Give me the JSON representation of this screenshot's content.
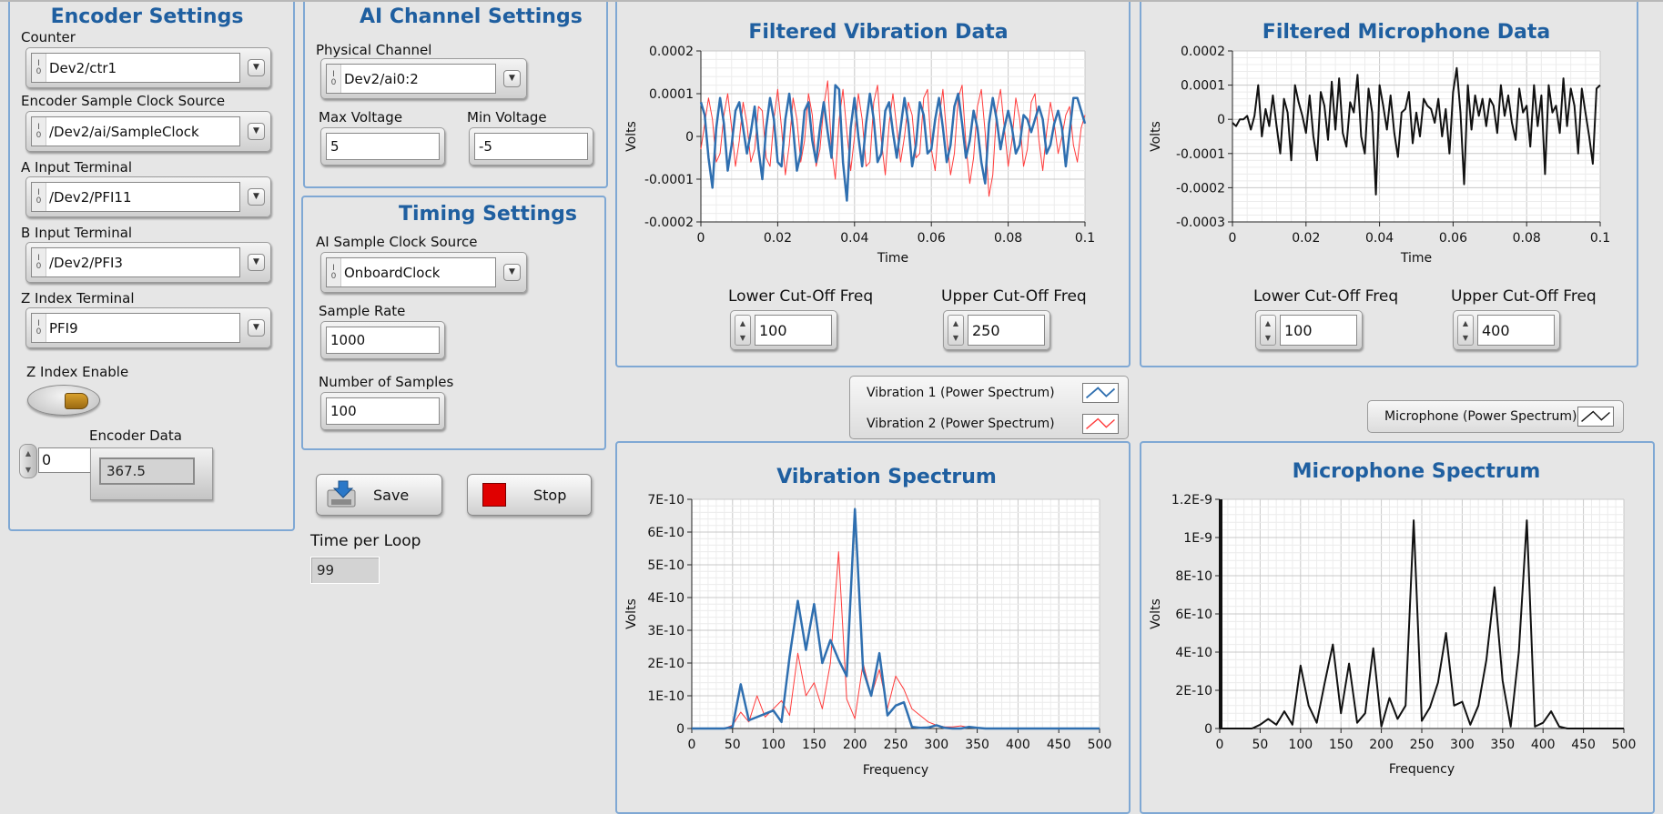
{
  "encoder": {
    "title": "Encoder Settings",
    "counter_label": "Counter",
    "counter_value": "Dev2/ctr1",
    "clock_label": "Encoder Sample Clock Source",
    "clock_value": "/Dev2/ai/SampleClock",
    "a_label": "A Input Terminal",
    "a_value": "/Dev2/PFI11",
    "b_label": "B Input Terminal",
    "b_value": "/Dev2/PFI3",
    "z_label": "Z Index Terminal",
    "z_value": "PFI9",
    "z_enable_label": "Z Index Enable",
    "stepper_value": "0",
    "data_label": "Encoder Data",
    "data_value": "367.5"
  },
  "ai": {
    "title": "AI Channel Settings",
    "phys_label": "Physical Channel",
    "phys_value": "Dev2/ai0:2",
    "max_label": "Max Voltage",
    "max_value": "5",
    "min_label": "Min Voltage",
    "min_value": "-5"
  },
  "timing": {
    "title": "Timing Settings",
    "clock_label": "AI Sample Clock Source",
    "clock_value": "OnboardClock",
    "rate_label": "Sample Rate",
    "rate_value": "1000",
    "nsamp_label": "Number of Samples",
    "nsamp_value": "100"
  },
  "controls": {
    "save_label": "Save",
    "stop_label": "Stop",
    "stop_color": "#e00000",
    "loop_label": "Time per Loop",
    "loop_value": "99"
  },
  "vib_filter": {
    "lower_label": "Lower Cut-Off Freq",
    "lower_value": "100",
    "upper_label": "Upper Cut-Off Freq",
    "upper_value": "250"
  },
  "mic_filter": {
    "lower_label": "Lower Cut-Off Freq",
    "lower_value": "100",
    "upper_label": "Upper Cut-Off Freq",
    "upper_value": "400"
  },
  "legend": {
    "vib1": "Vibration 1 (Power Spectrum)",
    "vib2": "Vibration 2 (Power Spectrum)",
    "mic": "Microphone (Power Spectrum)"
  },
  "colors": {
    "accent": "#1f5fa0",
    "series_blue": "#2f6fb0",
    "series_red": "#ff3b3b",
    "series_black": "#111111"
  },
  "chart_data": [
    {
      "type": "line",
      "title": "Filtered Vibration  Data",
      "xlabel": "Time",
      "ylabel": "Volts",
      "xlim": [
        0,
        0.1
      ],
      "ylim": [
        -0.0002,
        0.0002
      ],
      "xticks": [
        "0",
        "0.02",
        "0.04",
        "0.06",
        "0.08",
        "0.1"
      ],
      "yticks": [
        "0.0002",
        "0.0001",
        "0",
        "-0.0001",
        "-0.0002"
      ],
      "grid": true,
      "x": [
        0,
        0.001,
        0.002,
        0.003,
        0.004,
        0.005,
        0.006,
        0.007,
        0.008,
        0.009,
        0.01,
        0.011,
        0.012,
        0.013,
        0.014,
        0.015,
        0.016,
        0.017,
        0.018,
        0.019,
        0.02,
        0.021,
        0.022,
        0.023,
        0.024,
        0.025,
        0.026,
        0.027,
        0.028,
        0.029,
        0.03,
        0.031,
        0.032,
        0.033,
        0.034,
        0.035,
        0.036,
        0.037,
        0.038,
        0.039,
        0.04,
        0.041,
        0.042,
        0.043,
        0.044,
        0.045,
        0.046,
        0.047,
        0.048,
        0.049,
        0.05,
        0.051,
        0.052,
        0.053,
        0.054,
        0.055,
        0.056,
        0.057,
        0.058,
        0.059,
        0.06,
        0.061,
        0.062,
        0.063,
        0.064,
        0.065,
        0.066,
        0.067,
        0.068,
        0.069,
        0.07,
        0.071,
        0.072,
        0.073,
        0.074,
        0.075,
        0.076,
        0.077,
        0.078,
        0.079,
        0.08,
        0.081,
        0.082,
        0.083,
        0.084,
        0.085,
        0.086,
        0.087,
        0.088,
        0.089,
        0.09,
        0.091,
        0.092,
        0.093,
        0.094,
        0.095,
        0.096,
        0.097,
        0.098,
        0.099,
        0.1
      ],
      "series": [
        {
          "name": "Vibration 1",
          "color": "#2f6fb0",
          "values": [
            8e-05,
            5e-05,
            -5e-05,
            -0.00012,
            2e-05,
            9e-05,
            3e-05,
            -8e-05,
            -2e-05,
            6e-05,
            8e-05,
            2e-05,
            -4e-05,
            1e-05,
            7e-05,
            -3e-05,
            -0.0001,
            2e-05,
            9e-05,
            4e-05,
            -6e-05,
            -7e-05,
            4e-05,
            0.0001,
            2e-05,
            -8e-05,
            -4e-05,
            6e-05,
            8e-05,
            -1e-05,
            -6e-05,
            2e-05,
            8e-05,
            1e-05,
            -5e-05,
            0.00012,
            0.00011,
            -6e-05,
            -0.00015,
            2e-05,
            9e-05,
            0.0,
            -7e-05,
            3e-05,
            0.0001,
            4e-05,
            -6e-05,
            -4e-05,
            6e-05,
            8e-05,
            1e-05,
            -5e-05,
            2e-05,
            9e-05,
            3e-05,
            -7e-05,
            -2e-05,
            8e-05,
            5e-05,
            -4e-05,
            -3e-05,
            4e-05,
            9e-05,
            2e-05,
            -6e-05,
            -2e-05,
            7e-05,
            0.0001,
            3e-05,
            -5e-05,
            -1e-05,
            6e-05,
            2e-05,
            -6e-05,
            -0.00011,
            3e-05,
            9e-05,
            4e-05,
            -3e-05,
            2e-05,
            6e-05,
            2e-05,
            -4e-05,
            -2e-05,
            5e-05,
            4e-05,
            1e-05,
            4e-05,
            7e-05,
            4e-05,
            -4e-05,
            -2e-05,
            3e-05,
            6e-05,
            2e-05,
            -7e-05,
            1e-05,
            9e-05,
            9e-05,
            6e-05,
            3e-05
          ]
        },
        {
          "name": "Vibration 2",
          "color": "#ff3b3b",
          "values": [
            -3e-05,
            3e-05,
            9e-05,
            4e-05,
            -6e-05,
            -4e-05,
            5e-05,
            0.0001,
            2e-05,
            -7e-05,
            -1e-05,
            8e-05,
            3e-05,
            -6e-05,
            -3e-05,
            7e-05,
            6e-05,
            -5e-05,
            -7e-05,
            4e-05,
            0.00011,
            2e-05,
            -9e-05,
            -2e-05,
            9e-05,
            4e-05,
            -6e-05,
            -1e-05,
            0.0001,
            5e-05,
            -7e-05,
            -3e-05,
            7e-05,
            0.00013,
            -3e-05,
            -0.0001,
            4e-05,
            0.00011,
            1e-05,
            -8e-05,
            0.0,
            0.0001,
            4e-05,
            -7e-05,
            -6e-05,
            8e-05,
            0.00012,
            -1e-05,
            -9e-05,
            3e-05,
            0.0001,
            2e-05,
            -6e-05,
            0.0,
            8e-05,
            5e-05,
            -5e-05,
            -4e-05,
            9e-05,
            0.00011,
            -3e-05,
            -8e-05,
            4e-05,
            0.00011,
            0.0,
            -9e-05,
            -4e-05,
            9e-05,
            0.00012,
            -2e-05,
            -0.00011,
            -5e-05,
            7e-05,
            0.00011,
            1e-05,
            -0.00014,
            -9e-05,
            6e-05,
            0.00011,
            2e-05,
            -7e-05,
            -1e-05,
            9e-05,
            4e-05,
            -7e-05,
            -3e-05,
            8e-05,
            0.0001,
            -1e-05,
            -8e-05,
            1e-05,
            8e-05,
            3e-05,
            -4e-05,
            0.0,
            5e-05,
            7e-05,
            -2e-05,
            -6e-05,
            2e-05,
            5e-05
          ]
        }
      ]
    },
    {
      "type": "line",
      "title": "Filtered Microphone  Data",
      "xlabel": "Time",
      "ylabel": "Volts",
      "xlim": [
        0,
        0.1
      ],
      "ylim": [
        -0.0003,
        0.0002
      ],
      "xticks": [
        "0",
        "0.02",
        "0.04",
        "0.06",
        "0.08",
        "0.1"
      ],
      "yticks": [
        "0.0002",
        "0.0001",
        "0",
        "-0.0001",
        "-0.0002",
        "-0.0003"
      ],
      "grid": true,
      "x": [
        0,
        0.001,
        0.002,
        0.003,
        0.004,
        0.005,
        0.006,
        0.007,
        0.008,
        0.009,
        0.01,
        0.011,
        0.012,
        0.013,
        0.014,
        0.015,
        0.016,
        0.017,
        0.018,
        0.019,
        0.02,
        0.021,
        0.022,
        0.023,
        0.024,
        0.025,
        0.026,
        0.027,
        0.028,
        0.029,
        0.03,
        0.031,
        0.032,
        0.033,
        0.034,
        0.035,
        0.036,
        0.037,
        0.038,
        0.039,
        0.04,
        0.041,
        0.042,
        0.043,
        0.044,
        0.045,
        0.046,
        0.047,
        0.048,
        0.049,
        0.05,
        0.051,
        0.052,
        0.053,
        0.054,
        0.055,
        0.056,
        0.057,
        0.058,
        0.059,
        0.06,
        0.061,
        0.062,
        0.063,
        0.064,
        0.065,
        0.066,
        0.067,
        0.068,
        0.069,
        0.07,
        0.071,
        0.072,
        0.073,
        0.074,
        0.075,
        0.076,
        0.077,
        0.078,
        0.079,
        0.08,
        0.081,
        0.082,
        0.083,
        0.084,
        0.085,
        0.086,
        0.087,
        0.088,
        0.089,
        0.09,
        0.091,
        0.092,
        0.093,
        0.094,
        0.095,
        0.096,
        0.097,
        0.098,
        0.099,
        0.1
      ],
      "series": [
        {
          "name": "Microphone",
          "color": "#111111",
          "values": [
            -1e-05,
            -2e-05,
            0.0,
            0.0,
            1e-05,
            -3e-05,
            1e-05,
            0.0001,
            -5e-05,
            3e-05,
            -2e-05,
            7e-05,
            -2e-05,
            -0.0001,
            6e-05,
            2e-05,
            -0.00012,
            0.0001,
            5e-05,
            1e-05,
            -4e-05,
            7e-05,
            -5e-05,
            -0.00012,
            8e-05,
            4e-05,
            -6e-05,
            0.00011,
            -3e-05,
            0.00012,
            -4e-05,
            -8e-05,
            5e-05,
            2e-05,
            0.00013,
            -5e-05,
            -0.0001,
            9e-05,
            2e-05,
            -0.00022,
            0.0001,
            4e-05,
            -3e-05,
            7e-05,
            -4e-05,
            -0.00011,
            2e-05,
            3e-05,
            8e-05,
            -7e-05,
            2e-05,
            -5e-05,
            6e-05,
            4e-05,
            3e-05,
            -1e-05,
            6e-05,
            -5e-05,
            3e-05,
            -0.0001,
            8e-05,
            0.00015,
            2e-05,
            -0.00019,
            0.0001,
            -3e-05,
            7e-05,
            1e-05,
            6e-05,
            -2e-05,
            6e-05,
            4e-05,
            -4e-05,
            0.0001,
            1e-05,
            7e-05,
            -1e-05,
            -6e-05,
            9e-05,
            2e-05,
            4e-05,
            -8e-05,
            0.0001,
            -2e-05,
            7e-05,
            -0.00016,
            0.0001,
            2e-05,
            4e-05,
            -4e-05,
            0.00012,
            -2e-05,
            9e-05,
            4e-05,
            -0.0001,
            9e-05,
            2e-05,
            -5e-05,
            -0.00013,
            9e-05,
            0.0001
          ]
        }
      ]
    },
    {
      "type": "line",
      "title": "Vibration Spectrum",
      "xlabel": "Frequency",
      "ylabel": "Volts",
      "xlim": [
        0,
        500
      ],
      "ylim": [
        0,
        7e-10
      ],
      "xticks": [
        "0",
        "50",
        "100",
        "150",
        "200",
        "250",
        "300",
        "350",
        "400",
        "450",
        "500"
      ],
      "yticks": [
        "7E-10",
        "6E-10",
        "5E-10",
        "4E-10",
        "3E-10",
        "2E-10",
        "1E-10",
        "0"
      ],
      "grid": true,
      "series": [
        {
          "name": "Vibration 1 (Power Spectrum)",
          "color": "#2f6fb0",
          "x": [
            0,
            40,
            50,
            60,
            70,
            80,
            90,
            100,
            110,
            120,
            130,
            140,
            150,
            160,
            170,
            180,
            190,
            200,
            210,
            220,
            230,
            240,
            250,
            260,
            270,
            280,
            290,
            300,
            310,
            320,
            330,
            340,
            350,
            360,
            500
          ],
          "values": [
            0,
            0,
            5e-12,
            1.35e-10,
            2.5e-11,
            3.5e-11,
            4.5e-11,
            5.5e-11,
            2e-11,
            2.2e-10,
            3.9e-10,
            2.4e-10,
            3.8e-10,
            2e-10,
            2.7e-10,
            2.1e-10,
            1.6e-10,
            6.7e-10,
            1.8e-10,
            1e-10,
            2.3e-10,
            4e-11,
            7e-11,
            8e-11,
            5e-12,
            2e-12,
            3e-12,
            1e-11,
            2e-12,
            0,
            0,
            5e-12,
            2e-12,
            0,
            0
          ]
        },
        {
          "name": "Vibration 2 (Power Spectrum)",
          "color": "#ff3b3b",
          "x": [
            0,
            40,
            50,
            60,
            70,
            80,
            90,
            100,
            110,
            120,
            130,
            140,
            150,
            160,
            170,
            180,
            190,
            200,
            210,
            220,
            230,
            240,
            250,
            260,
            270,
            280,
            290,
            300,
            310,
            320,
            330,
            340,
            350,
            360,
            500
          ],
          "values": [
            0,
            0,
            1e-11,
            5e-11,
            2e-11,
            1e-10,
            3.5e-11,
            6e-11,
            8.5e-11,
            4e-11,
            2.3e-10,
            1e-10,
            1.4e-10,
            6e-11,
            2e-10,
            5.4e-10,
            9e-11,
            3e-11,
            2e-10,
            1e-10,
            1.8e-10,
            6e-11,
            1.6e-10,
            1.2e-10,
            6e-11,
            4e-11,
            2e-11,
            1e-11,
            5e-12,
            5e-12,
            8e-12,
            3e-12,
            2e-12,
            0,
            0
          ]
        }
      ]
    },
    {
      "type": "line",
      "title": "Microphone Spectrum",
      "xlabel": "Frequency",
      "ylabel": "Volts",
      "xlim": [
        0,
        500
      ],
      "ylim": [
        0,
        1.2e-09
      ],
      "xticks": [
        "0",
        "50",
        "100",
        "150",
        "200",
        "250",
        "300",
        "350",
        "400",
        "450",
        "500"
      ],
      "yticks": [
        "1.2E-9",
        "1E-9",
        "8E-10",
        "6E-10",
        "4E-10",
        "2E-10",
        "0"
      ],
      "grid": true,
      "series": [
        {
          "name": "Microphone (Power Spectrum)",
          "color": "#111111",
          "x": [
            0,
            40,
            50,
            60,
            70,
            80,
            90,
            100,
            110,
            120,
            130,
            140,
            150,
            160,
            170,
            180,
            190,
            200,
            210,
            220,
            230,
            240,
            250,
            260,
            270,
            280,
            290,
            300,
            310,
            320,
            330,
            340,
            350,
            360,
            370,
            380,
            390,
            400,
            410,
            420,
            430,
            440,
            500
          ],
          "values": [
            0,
            0,
            2e-11,
            5e-11,
            2e-11,
            9e-11,
            2e-11,
            3.3e-10,
            1.2e-10,
            3e-11,
            2.4e-10,
            4.4e-10,
            8e-11,
            3.4e-10,
            3e-11,
            8e-11,
            4.2e-10,
            1e-11,
            1.6e-10,
            5e-11,
            1.2e-10,
            1.09e-09,
            4e-11,
            1.1e-10,
            2.4e-10,
            5e-10,
            1.2e-10,
            1.4e-10,
            2e-11,
            1.2e-10,
            3.6e-10,
            7.4e-10,
            2.5e-10,
            1e-11,
            4e-10,
            1.09e-09,
            1e-11,
            3e-11,
            9e-11,
            1e-11,
            0,
            0,
            0
          ]
        }
      ]
    }
  ]
}
